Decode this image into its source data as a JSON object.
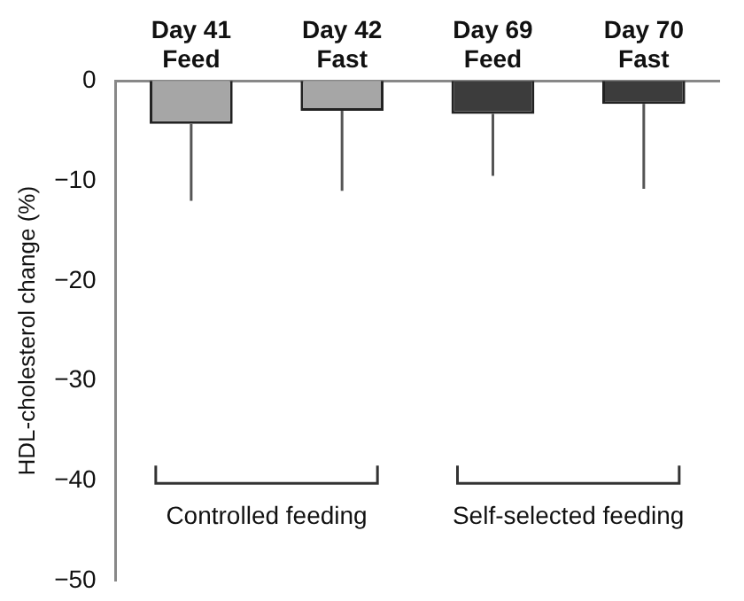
{
  "chart_data": {
    "type": "bar",
    "ylabel": "HDL-cholesterol change (%)",
    "categories": [
      "Day 41\nFeed",
      "Day 42\nFast",
      "Day 69\nFeed",
      "Day 70\nFast"
    ],
    "values": [
      -4.3,
      -3,
      -3.3,
      -2.3
    ],
    "colors": [
      "#a6a6a6",
      "#a6a6a6",
      "#3c3c3c",
      "#3c3c3c"
    ],
    "errors": [
      [
        -12,
        -4.3
      ],
      [
        -11,
        -3
      ],
      [
        -9.5,
        -3.3
      ],
      [
        -10.8,
        -2.3
      ]
    ],
    "ylim": [
      -50,
      0
    ],
    "yticks": [
      0,
      -10,
      -20,
      -30,
      -40,
      -50
    ],
    "grid": false,
    "annotations": [
      "Controlled feeding",
      "Self-selected feeding"
    ]
  }
}
